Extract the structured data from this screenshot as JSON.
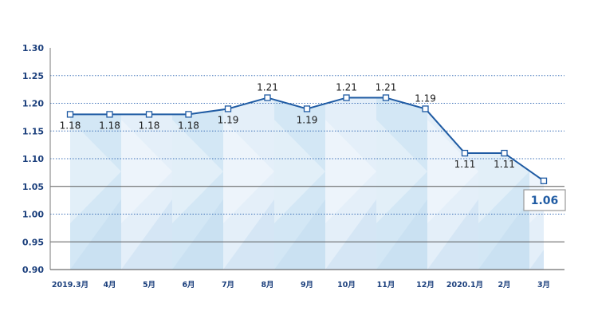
{
  "chart_data": {
    "type": "line",
    "categories": [
      "2019.3月",
      "4月",
      "5月",
      "6月",
      "7月",
      "8月",
      "9月",
      "10月",
      "11月",
      "12月",
      "2020.1月",
      "2月",
      "3月"
    ],
    "series": [
      {
        "values": [
          1.18,
          1.18,
          1.18,
          1.18,
          1.19,
          1.21,
          1.19,
          1.21,
          1.21,
          1.19,
          1.11,
          1.11,
          1.06
        ]
      }
    ],
    "ylim": [
      0.9,
      1.3
    ],
    "yticks": [
      "0.90",
      "0.95",
      "1.00",
      "1.05",
      "1.10",
      "1.15",
      "1.20",
      "1.25",
      "1.30"
    ],
    "reference_lines": [
      0.95,
      1.05
    ],
    "grid": true,
    "legend": "none",
    "colors": {
      "line": "#1f5ba3",
      "axis_text": "#1b3f7c",
      "highlight_text": "#1f5ba3",
      "grid_dotted": "#3f72b8",
      "reference_line": "#5a5a5a"
    }
  }
}
